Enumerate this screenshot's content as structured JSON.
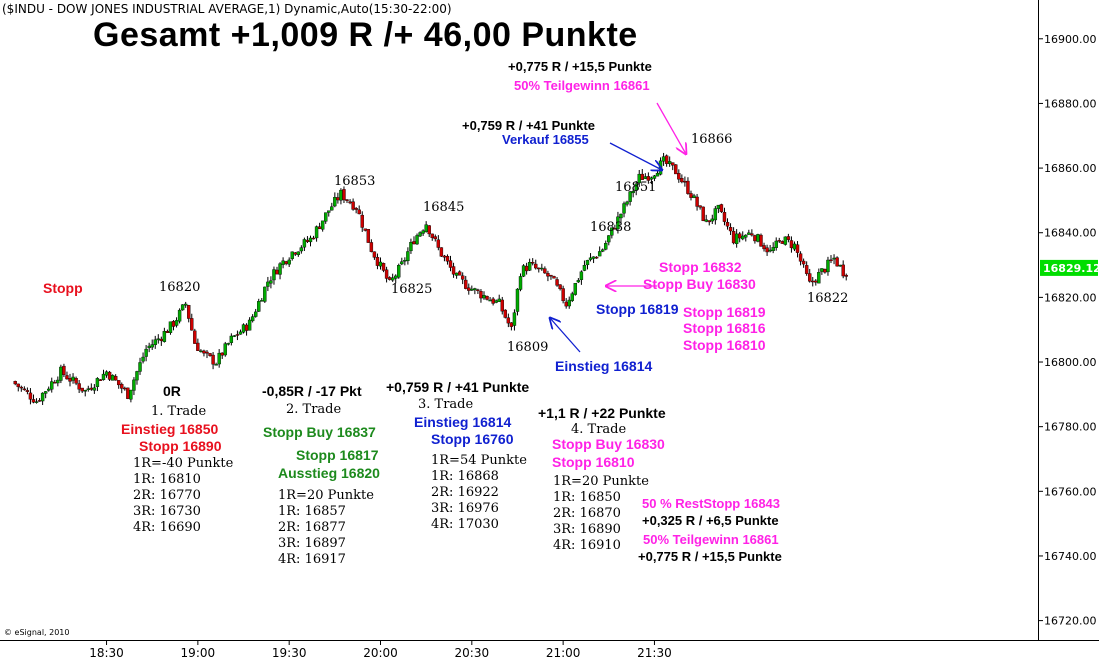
{
  "header": "($INDU - DOW JONES INDUSTRIAL AVERAGE,1) Dynamic,Auto(15:30-22:00)",
  "title": "Gesamt +1,009 R /+ 46,00 Punkte",
  "credit": "© eSignal, 2010",
  "chart_data": {
    "type": "candlestick",
    "ylim": [
      16714,
      16912
    ],
    "yticks": [
      "16900.00",
      "16880.00",
      "16860.00",
      "16840.00",
      "16820.00",
      "16800.00",
      "16780.00",
      "16760.00",
      "16740.00",
      "16720.00"
    ],
    "xticks": [
      "18:30",
      "19:00",
      "19:30",
      "20:00",
      "20:30",
      "21:00",
      "21:30"
    ],
    "last_price": "16829.12",
    "colors": {
      "up": "#00aa00",
      "down": "#cc0000",
      "wick": "#000000",
      "price_box": "#00dd00"
    },
    "anchors": [
      [
        "18:00",
        16794
      ],
      [
        "18:08",
        16788
      ],
      [
        "18:16",
        16797
      ],
      [
        "18:24",
        16791
      ],
      [
        "18:31",
        16797
      ],
      [
        "18:38",
        16790
      ],
      [
        "18:44",
        16804
      ],
      [
        "18:49",
        16808
      ],
      [
        "18:53",
        16812
      ],
      [
        "18:57",
        16818
      ],
      [
        "19:00",
        16806
      ],
      [
        "19:03",
        16802
      ],
      [
        "19:07",
        16800
      ],
      [
        "19:12",
        16807
      ],
      [
        "19:18",
        16812
      ],
      [
        "19:24",
        16825
      ],
      [
        "19:28",
        16830
      ],
      [
        "19:32",
        16834
      ],
      [
        "19:38",
        16838
      ],
      [
        "19:44",
        16847
      ],
      [
        "19:48",
        16852
      ],
      [
        "19:53",
        16848
      ],
      [
        "19:58",
        16835
      ],
      [
        "20:04",
        16824
      ],
      [
        "20:08",
        16830
      ],
      [
        "20:12",
        16838
      ],
      [
        "20:16",
        16843
      ],
      [
        "20:20",
        16835
      ],
      [
        "20:26",
        16826
      ],
      [
        "20:32",
        16822
      ],
      [
        "20:40",
        16818
      ],
      [
        "20:44",
        16810
      ],
      [
        "20:47",
        16828
      ],
      [
        "20:50",
        16830
      ],
      [
        "20:57",
        16826
      ],
      [
        "21:02",
        16818
      ],
      [
        "21:05",
        16824
      ],
      [
        "21:08",
        16830
      ],
      [
        "21:14",
        16835
      ],
      [
        "21:20",
        16846
      ],
      [
        "21:26",
        16857
      ],
      [
        "21:30",
        16858
      ],
      [
        "21:34",
        16862
      ],
      [
        "21:38",
        16859
      ],
      [
        "21:43",
        16852
      ],
      [
        "21:48",
        16843
      ],
      [
        "21:52",
        16847
      ],
      [
        "21:57",
        16838
      ],
      [
        "22:03",
        16840
      ],
      [
        "22:09",
        16834
      ],
      [
        "22:13",
        16838
      ],
      [
        "22:17",
        16836
      ],
      [
        "22:22",
        16824
      ],
      [
        "22:26",
        16828
      ],
      [
        "22:30",
        16832
      ],
      [
        "22:33",
        16828
      ]
    ]
  },
  "price_labels": {
    "p16820": "16820",
    "p16853": "16853",
    "p16845": "16845",
    "p16825": "16825",
    "p16838": "16838",
    "p16851": "16851",
    "p16866": "16866",
    "p16809": "16809",
    "p16822": "16822"
  },
  "annotations": {
    "stopp": "Stopp",
    "top_r": "+0,775 R / +15,5 Punkte",
    "top_teil": "50% Teilgewinn 16861",
    "verkauf_r": "+0,759 R / +41 Punkte",
    "verkauf": "Verkauf 16855",
    "stopp_16832": "Stopp 16832",
    "stopp_buy_16830": "Stopp Buy 16830",
    "stopp_16819_blue": "Stopp 16819",
    "stopp_16819": "Stopp 16819",
    "stopp_16816": "Stopp 16816",
    "stopp_16810": "Stopp 16810",
    "einstieg_16814": "Einstieg 16814"
  },
  "trades": {
    "t1": {
      "result": "0R",
      "name": "1. Trade",
      "entry": "Einstieg 16850",
      "stop": "Stopp 16890",
      "r": "1R=-40 Punkte",
      "levels": [
        "1R: 16810",
        "2R: 16770",
        "3R: 16730",
        "4R: 16690"
      ]
    },
    "t2": {
      "result": "-0,85R / -17 Pkt",
      "name": "2. Trade",
      "stop_buy": "Stopp Buy 16837",
      "stop": "Stopp 16817",
      "exit": "Ausstieg 16820",
      "r": "1R=20 Punkte",
      "levels": [
        "1R: 16857",
        "2R: 16877",
        "3R: 16897",
        "4R: 16917"
      ]
    },
    "t3": {
      "result": "+0,759 R / +41 Punkte",
      "name": "3. Trade",
      "entry": "Einstieg 16814",
      "stop": "Stopp 16760",
      "r": "1R=54 Punkte",
      "levels": [
        "1R: 16868",
        "2R: 16922",
        "3R: 16976",
        "4R: 17030"
      ]
    },
    "t4": {
      "result": "+1,1 R / +22 Punkte",
      "name": "4. Trade",
      "stop_buy": "Stopp Buy 16830",
      "stop": "Stopp 16810",
      "r": "1R=20 Punkte",
      "levels": [
        "1R: 16850",
        "2R: 16870",
        "3R: 16890",
        "4R: 16910"
      ],
      "rest_stop": "50 % RestStopp 16843",
      "rest_r": "+0,325 R / +6,5 Punkte",
      "teil": "50% Teilgewinn 16861",
      "teil_r": "+0,775 R / +15,5 Punkte"
    }
  }
}
